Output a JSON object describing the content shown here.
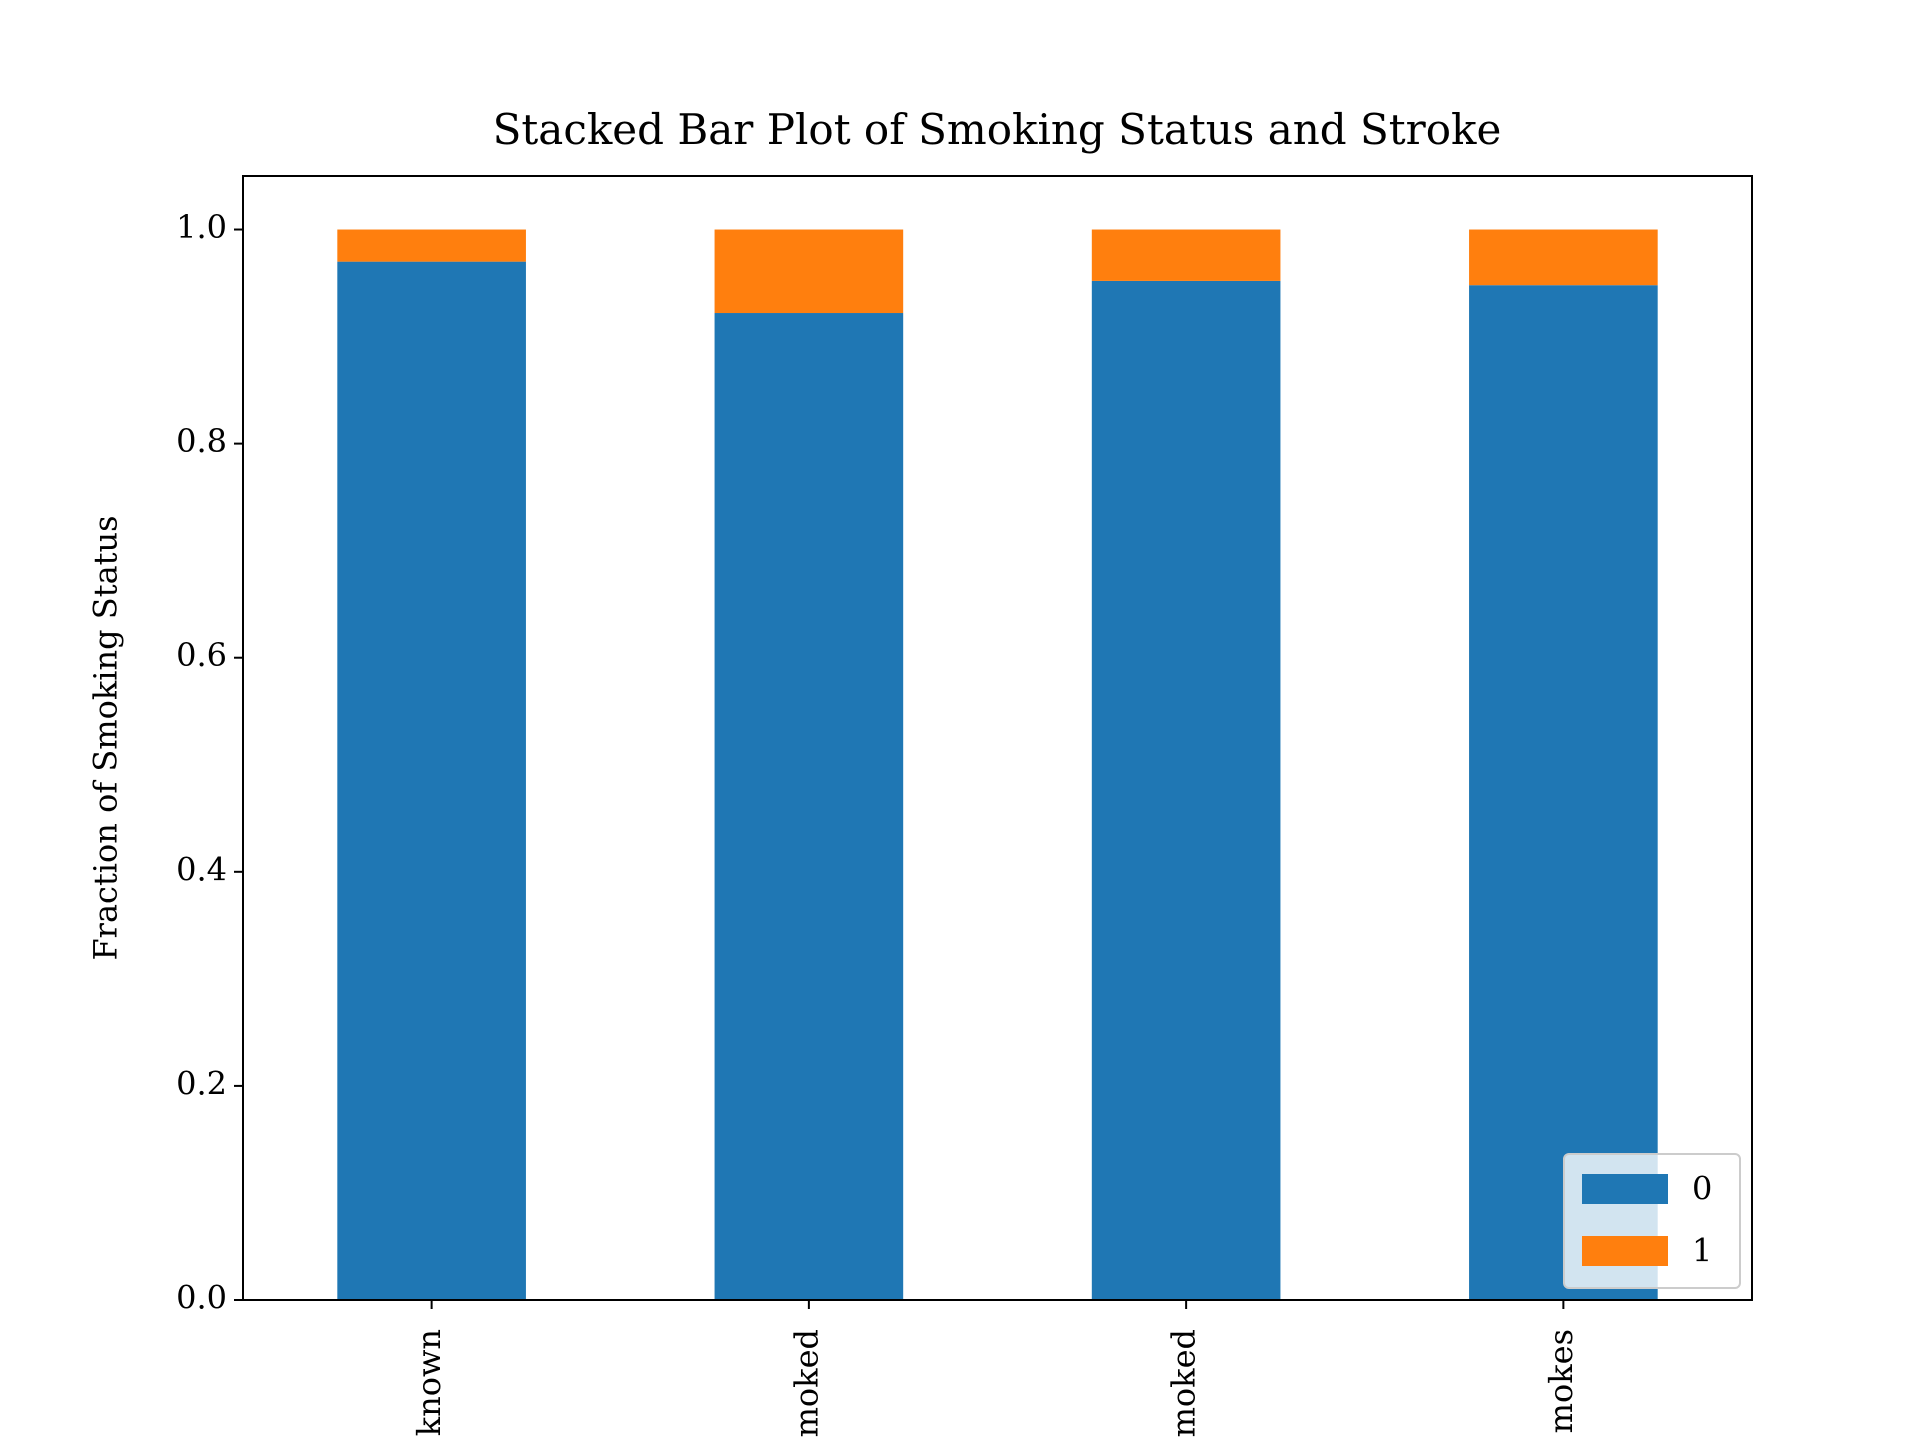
{
  "chart_data": {
    "type": "stacked_bar",
    "title": "Stacked Bar Plot of Smoking Status and Stroke",
    "y_label": "Fraction of Smoking Status",
    "categories": [
      "known",
      "moked",
      "moked",
      "mokes"
    ],
    "series": [
      {
        "name": "0",
        "color": "#1f77b4",
        "values": [
          0.97,
          0.922,
          0.952,
          0.948
        ]
      },
      {
        "name": "1",
        "color": "#ff7f0e",
        "values": [
          0.03,
          0.078,
          0.048,
          0.052
        ]
      }
    ],
    "ylim": [
      0,
      1.05
    ],
    "yticks": [
      {
        "value": 0,
        "label": "0.0"
      },
      {
        "value": 0.2,
        "label": "0.2"
      },
      {
        "value": 0.4,
        "label": "0.4"
      },
      {
        "value": 0.6,
        "label": "0.6"
      },
      {
        "value": 0.8,
        "label": "0.8"
      },
      {
        "value": 1,
        "label": "1.0"
      }
    ],
    "legend": "lower right"
  }
}
